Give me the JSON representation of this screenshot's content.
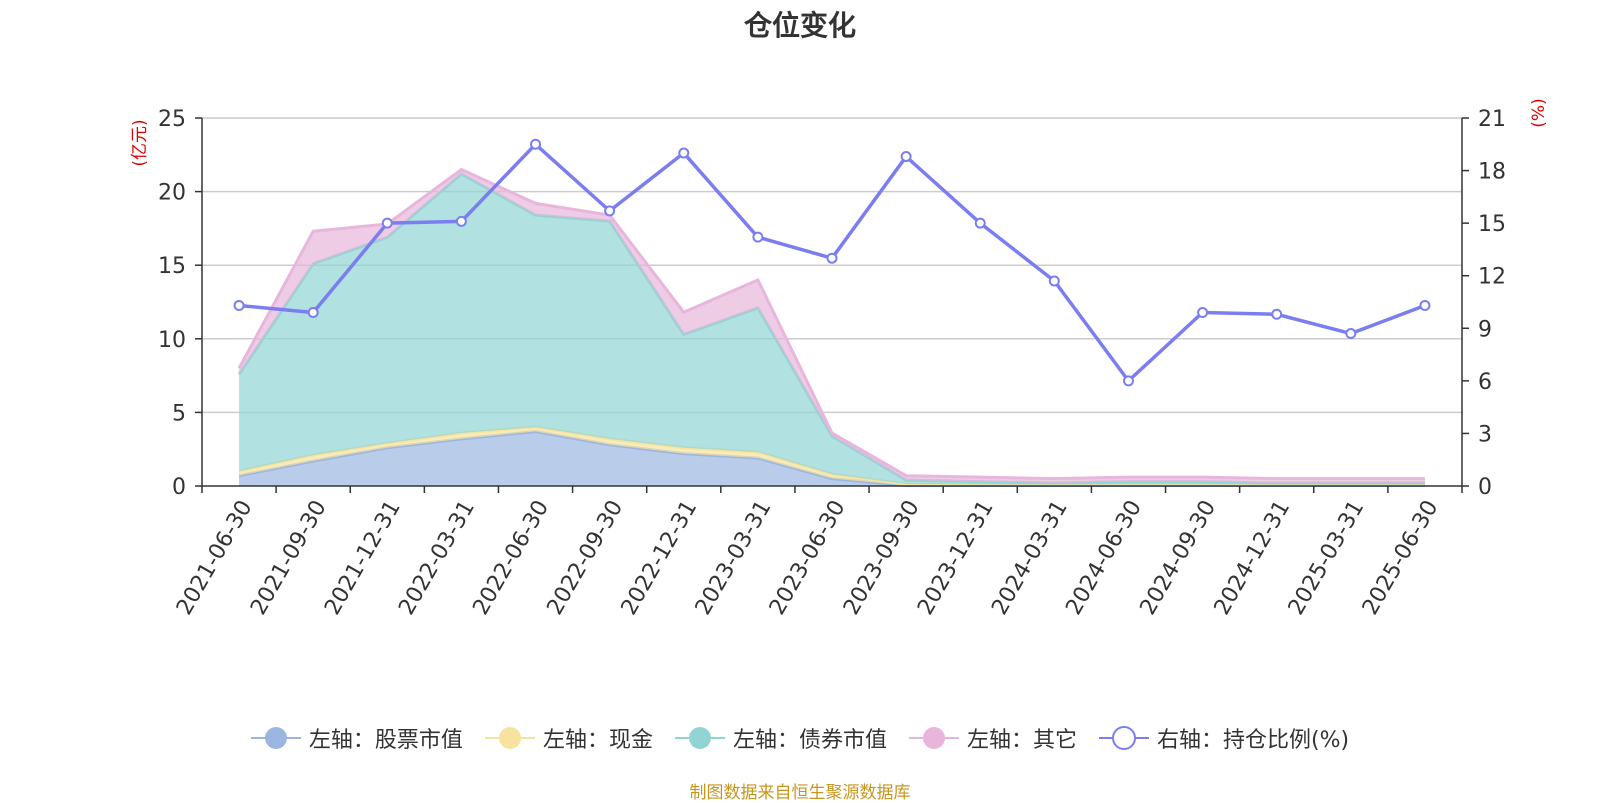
{
  "title": "仓位变化",
  "footer": "制图数据来自恒生聚源数据库",
  "chart_data": {
    "type": "area",
    "categories": [
      "2021-06-30",
      "2021-09-30",
      "2021-12-31",
      "2022-03-31",
      "2022-06-30",
      "2022-09-30",
      "2022-12-31",
      "2023-03-31",
      "2023-06-30",
      "2023-09-30",
      "2023-12-31",
      "2024-03-31",
      "2024-06-30",
      "2024-09-30",
      "2024-12-31",
      "2025-03-31",
      "2025-06-30"
    ],
    "left_axis": {
      "unit": "(亿元)",
      "ylim": [
        0,
        25
      ],
      "ticks": [
        0,
        5,
        10,
        15,
        20,
        25
      ]
    },
    "right_axis": {
      "unit": "(%)",
      "ylim": [
        0,
        21
      ],
      "ticks": [
        0,
        3,
        6,
        9,
        12,
        15,
        18,
        21
      ]
    },
    "grid": true,
    "legend_position": "bottom",
    "series": [
      {
        "name": "左轴：股票市值",
        "axis": "left",
        "kind": "stacked-area",
        "color": "#9bb6e0",
        "values": [
          0.7,
          1.7,
          2.6,
          3.2,
          3.7,
          2.8,
          2.2,
          1.9,
          0.5,
          0.03,
          0.03,
          0.03,
          0.03,
          0.03,
          0.03,
          0.03,
          0.03
        ]
      },
      {
        "name": "左轴：现金",
        "axis": "left",
        "kind": "stacked-area",
        "color": "#f7e3a0",
        "values": [
          0.3,
          0.4,
          0.3,
          0.4,
          0.3,
          0.4,
          0.4,
          0.4,
          0.3,
          0.1,
          0.07,
          0.07,
          0.07,
          0.07,
          0.07,
          0.07,
          0.07
        ]
      },
      {
        "name": "左轴：债券市值",
        "axis": "left",
        "kind": "stacked-area",
        "color": "#92d4d4",
        "values": [
          6.6,
          13.0,
          14.0,
          17.6,
          14.4,
          14.8,
          7.7,
          9.8,
          2.6,
          0.27,
          0.2,
          0.1,
          0.2,
          0.2,
          0.1,
          0.1,
          0.1
        ]
      },
      {
        "name": "左轴：其它",
        "axis": "left",
        "kind": "stacked-area",
        "color": "#e8b6dc",
        "values": [
          0.4,
          2.2,
          0.9,
          0.3,
          0.8,
          0.4,
          1.5,
          1.9,
          0.2,
          0.3,
          0.3,
          0.3,
          0.3,
          0.3,
          0.3,
          0.3,
          0.3
        ]
      },
      {
        "name": "右轴：持仓比例(%)",
        "axis": "right",
        "kind": "line",
        "color": "#7a7ef0",
        "values": [
          10.3,
          9.9,
          15.0,
          15.1,
          19.5,
          15.7,
          19.0,
          14.2,
          13.0,
          18.8,
          15.0,
          11.7,
          6.0,
          9.9,
          9.8,
          8.7,
          10.3
        ]
      }
    ]
  }
}
